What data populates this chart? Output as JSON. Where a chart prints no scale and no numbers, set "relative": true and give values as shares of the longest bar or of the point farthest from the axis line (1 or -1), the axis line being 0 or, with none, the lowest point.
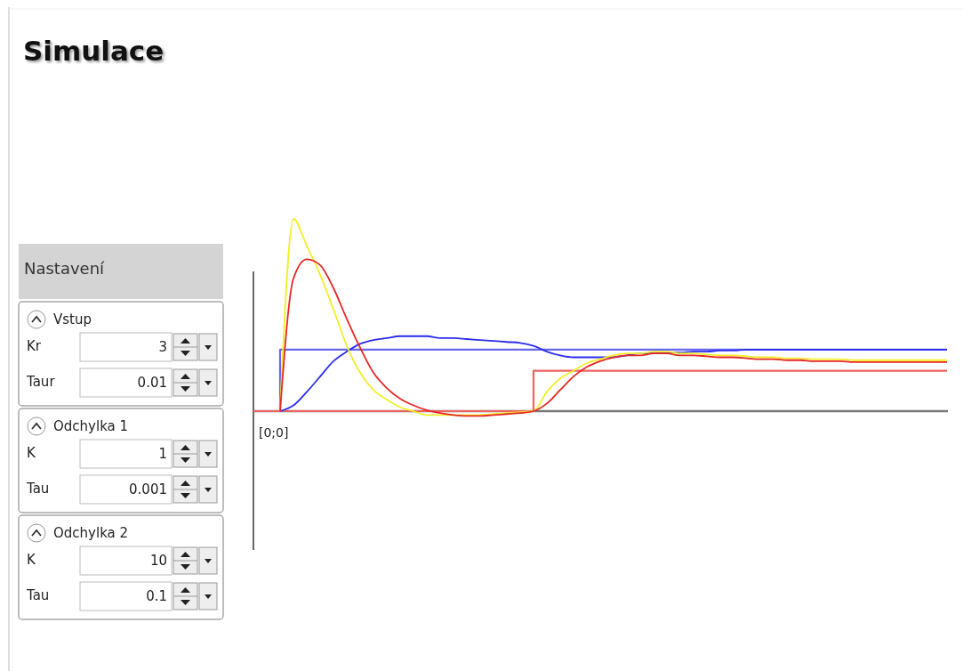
{
  "chart_data": [
    {
      "type": "line",
      "title": "Simulace",
      "relative": true,
      "annotations": [
        "[0;0]"
      ],
      "categories": [
        null,
        null,
        null,
        null,
        null,
        null,
        null,
        null,
        null,
        null,
        null,
        null,
        null,
        null,
        null,
        null,
        null,
        null,
        null,
        null,
        null,
        null,
        null,
        null,
        null,
        null,
        null,
        null,
        null,
        null,
        null,
        null,
        null,
        null,
        null,
        null,
        null,
        null,
        null,
        null,
        null,
        null,
        null,
        null,
        null,
        null,
        null,
        null,
        null,
        null,
        null,
        null,
        null
      ],
      "series": [
        {
          "type": "step",
          "color": "#6868f2",
          "values": [
            0,
            0,
            0.32,
            0.32,
            0.32,
            0.32,
            0.32,
            0.32,
            0.32,
            0.32,
            0.32,
            0.32,
            0.32,
            0.32,
            0.32,
            0.32,
            0.32,
            0.32,
            0.32,
            0.32,
            0.32,
            0.32,
            0.32,
            0.32,
            0.32,
            0.32,
            0.32,
            0.32,
            0.32,
            0.32,
            0.32,
            0.32,
            0.32,
            0.32,
            0.32,
            0.32,
            0.32,
            0.32,
            0.32,
            0.32,
            0.32,
            0.32,
            0.32,
            0.32,
            0.32,
            0.32,
            0.32,
            0.32,
            0.32,
            0.32,
            0.32,
            0.32,
            0.32
          ]
        },
        {
          "type": "step",
          "color": "#f06262",
          "values": [
            0,
            0,
            0,
            0,
            0,
            0,
            0,
            0,
            0,
            0,
            0,
            0,
            0,
            0,
            0,
            0,
            0,
            0,
            0,
            0,
            0,
            0.21,
            0.21,
            0.21,
            0.21,
            0.21,
            0.21,
            0.21,
            0.21,
            0.21,
            0.21,
            0.21,
            0.21,
            0.21,
            0.21,
            0.21,
            0.21,
            0.21,
            0.21,
            0.21,
            0.21,
            0.21,
            0.21,
            0.21,
            0.21,
            0.21,
            0.21,
            0.21,
            0.21,
            0.21,
            0.21,
            0.21,
            0.21
          ]
        },
        {
          "color": "#2c2cee",
          "values": [
            null,
            null,
            0,
            0.03,
            0.1,
            0.18,
            0.26,
            0.31,
            0.35,
            0.37,
            0.38,
            0.39,
            0.39,
            0.39,
            0.38,
            0.38,
            0.375,
            0.37,
            0.365,
            0.36,
            0.355,
            0.34,
            0.31,
            0.29,
            0.28,
            0.28,
            0.28,
            0.28,
            0.29,
            0.3,
            0.3,
            0.305,
            0.305,
            0.31,
            0.31,
            0.315,
            0.315,
            0.32,
            0.32,
            0.32,
            0.32,
            0.32,
            0.32,
            0.32,
            0.32,
            0.32,
            0.32,
            0.32,
            0.32,
            0.32,
            0.32,
            0.32,
            0.32
          ]
        },
        {
          "color": "#f2ee2a",
          "values": [
            null,
            null,
            0,
            1,
            0.86,
            0.71,
            0.53,
            0.34,
            0.2,
            0.11,
            0.06,
            0.02,
            0,
            -0.02,
            -0.02,
            -0.02,
            -0.02,
            -0.02,
            -0.015,
            -0.01,
            -0.005,
            0,
            0.1,
            0.17,
            0.21,
            0.25,
            0.27,
            0.29,
            0.3,
            0.3,
            0.31,
            0.31,
            0.3,
            0.3,
            0.295,
            0.29,
            0.29,
            0.285,
            0.28,
            0.28,
            0.275,
            0.275,
            0.27,
            0.27,
            0.27,
            0.265,
            0.265,
            0.265,
            0.265,
            0.265,
            0.265,
            0.265,
            0.265
          ]
        },
        {
          "color": "#e82626",
          "values": [
            null,
            null,
            0,
            0.69,
            0.79,
            0.76,
            0.64,
            0.48,
            0.33,
            0.2,
            0.12,
            0.065,
            0.03,
            0.005,
            -0.01,
            -0.02,
            -0.025,
            -0.025,
            -0.02,
            -0.015,
            -0.01,
            0,
            0.04,
            0.11,
            0.18,
            0.23,
            0.26,
            0.28,
            0.29,
            0.29,
            0.3,
            0.3,
            0.29,
            0.29,
            0.285,
            0.28,
            0.28,
            0.275,
            0.27,
            0.27,
            0.265,
            0.265,
            0.26,
            0.26,
            0.26,
            0.255,
            0.255,
            0.255,
            0.255,
            0.255,
            0.255,
            0.255,
            0.255
          ]
        }
      ]
    },
    {
      "type": "other",
      "title": "Nastavení",
      "data_labels": true,
      "annotations": [
        "Vstup",
        "Odchylka 1",
        "Odchylka 2"
      ],
      "categories": [
        "Kr",
        "Taur",
        "K",
        "Tau",
        "K",
        "Tau"
      ],
      "values": [
        3,
        0.01,
        1,
        0.001,
        10,
        0.1
      ]
    }
  ]
}
